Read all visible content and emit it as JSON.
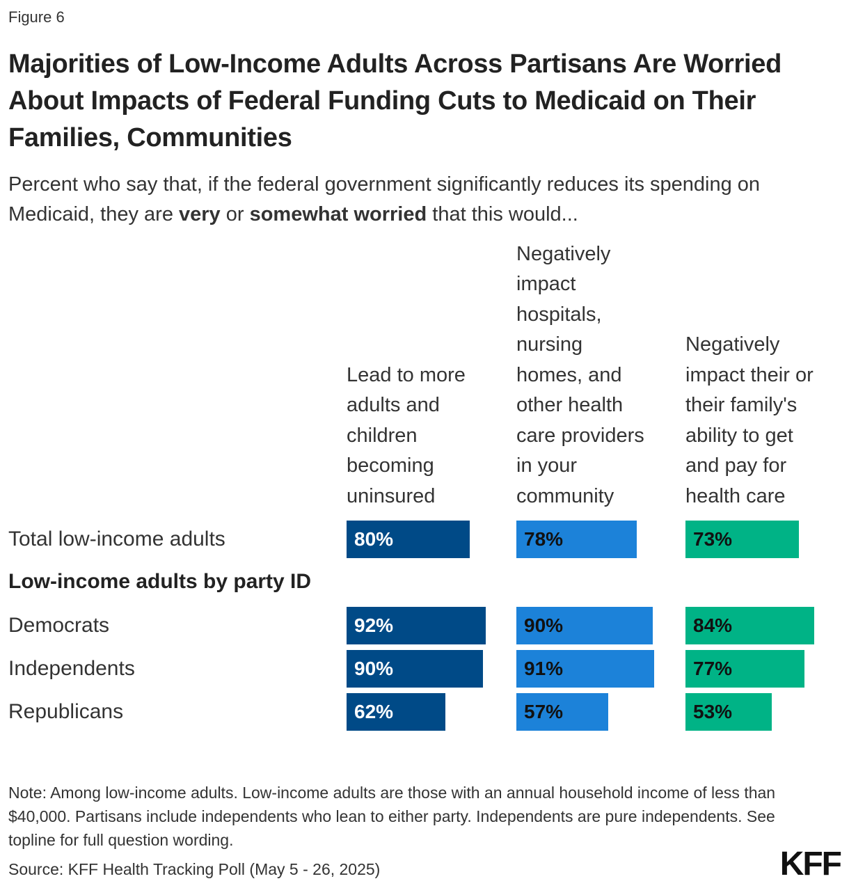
{
  "figure_label": "Figure 6",
  "title": "Majorities of Low-Income Adults Across Partisans Are Worried About Impacts of Federal Funding Cuts to Medicaid on Their Families, Communities",
  "subtitle": {
    "part1": "Percent who say that, if the federal government significantly reduces its spending on Medicaid, they are ",
    "bold1": "very",
    "part2": " or ",
    "bold2": "somewhat worried",
    "part3": " that this would..."
  },
  "note": "Note: Among low-income adults. Low-income adults are those with an annual household income of less than $40,000. Partisans include independents who lean to either party. Independents are pure independents. See topline for full question wording.",
  "source": "Source: KFF Health Tracking Poll (May 5 - 26, 2025)",
  "logo": "KFF",
  "chart_data": {
    "type": "bar",
    "title": "Majorities of Low-Income Adults Across Partisans Are Worried About Impacts of Federal Funding Cuts to Medicaid on Their Families, Communities",
    "value_format": "percent",
    "xlim": [
      0,
      100
    ],
    "categories": [
      "Total low-income adults",
      "Democrats",
      "Independents",
      "Republicans"
    ],
    "group_label": "Low-income adults by party ID",
    "series": [
      {
        "name": "Lead to more\nadults and\nchildren\nbecoming\nuninsured",
        "color": "#004a87",
        "label_color": "#ffffff",
        "values": [
          80,
          92,
          90,
          62
        ]
      },
      {
        "name": "Negatively\nimpact\nhospitals,\nnursing\nhomes, and\nother health\ncare providers\nin your\ncommunity",
        "color": "#1c82d9",
        "label_color": "#111111",
        "values": [
          78,
          90,
          91,
          57
        ]
      },
      {
        "name": "Negatively\nimpact their or\ntheir family's\nability to get\nand pay for\nhealth care",
        "color": "#00b386",
        "label_color": "#111111",
        "values": [
          73,
          84,
          77,
          53
        ]
      }
    ]
  }
}
